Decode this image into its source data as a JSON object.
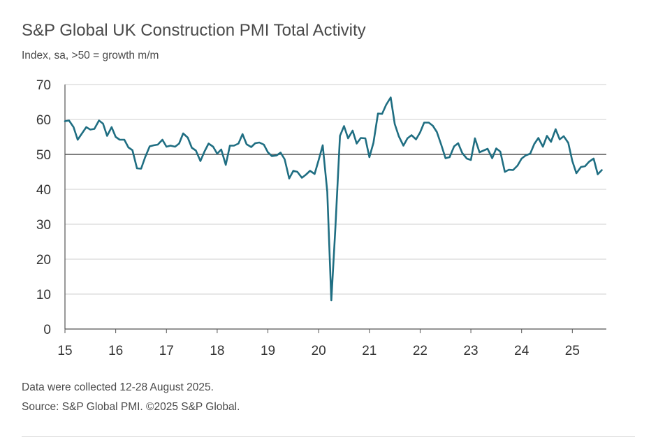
{
  "chart_data": {
    "type": "line",
    "title": "S&P Global UK Construction PMI Total Activity",
    "subtitle": "Index, sa, >50 = growth m/m",
    "xlabel": "",
    "ylabel": "",
    "ylim": [
      0,
      70
    ],
    "yticks": [
      0,
      10,
      20,
      30,
      40,
      50,
      60,
      70
    ],
    "xlim": [
      2015,
      2025.67
    ],
    "xtick_labels": [
      "15",
      "16",
      "17",
      "18",
      "19",
      "20",
      "21",
      "22",
      "23",
      "24",
      "25"
    ],
    "xtick_values": [
      2015,
      2016,
      2017,
      2018,
      2019,
      2020,
      2021,
      2022,
      2023,
      2024,
      2025
    ],
    "grid": true,
    "reference_line": 50,
    "series": [
      {
        "name": "UK Construction PMI Total Activity",
        "color": "#1f6e82",
        "x": [
          2015.0,
          2015.08,
          2015.17,
          2015.25,
          2015.33,
          2015.42,
          2015.5,
          2015.58,
          2015.67,
          2015.75,
          2015.83,
          2015.92,
          2016.0,
          2016.08,
          2016.17,
          2016.25,
          2016.33,
          2016.42,
          2016.5,
          2016.58,
          2016.67,
          2016.75,
          2016.83,
          2016.92,
          2017.0,
          2017.08,
          2017.17,
          2017.25,
          2017.33,
          2017.42,
          2017.5,
          2017.58,
          2017.67,
          2017.75,
          2017.83,
          2017.92,
          2018.0,
          2018.08,
          2018.17,
          2018.25,
          2018.33,
          2018.42,
          2018.5,
          2018.58,
          2018.67,
          2018.75,
          2018.83,
          2018.92,
          2019.0,
          2019.08,
          2019.17,
          2019.25,
          2019.33,
          2019.42,
          2019.5,
          2019.58,
          2019.67,
          2019.75,
          2019.83,
          2019.92,
          2020.0,
          2020.08,
          2020.17,
          2020.25,
          2020.33,
          2020.42,
          2020.5,
          2020.58,
          2020.67,
          2020.75,
          2020.83,
          2020.92,
          2021.0,
          2021.08,
          2021.17,
          2021.25,
          2021.33,
          2021.42,
          2021.5,
          2021.58,
          2021.67,
          2021.75,
          2021.83,
          2021.92,
          2022.0,
          2022.08,
          2022.17,
          2022.25,
          2022.33,
          2022.42,
          2022.5,
          2022.58,
          2022.67,
          2022.75,
          2022.83,
          2022.92,
          2023.0,
          2023.08,
          2023.17,
          2023.25,
          2023.33,
          2023.42,
          2023.5,
          2023.58,
          2023.67,
          2023.75,
          2023.83,
          2023.92,
          2024.0,
          2024.08,
          2024.17,
          2024.25,
          2024.33,
          2024.42,
          2024.5,
          2024.58,
          2024.67,
          2024.75,
          2024.83,
          2024.92,
          2025.0,
          2025.08,
          2025.17,
          2025.25,
          2025.33,
          2025.42,
          2025.5,
          2025.58
        ],
        "values": [
          59.5,
          59.7,
          57.8,
          54.2,
          55.9,
          57.8,
          57.1,
          57.3,
          59.7,
          58.8,
          55.3,
          57.8,
          55.0,
          54.2,
          54.2,
          52.0,
          51.2,
          46.0,
          45.9,
          49.2,
          52.3,
          52.6,
          52.8,
          54.2,
          52.2,
          52.5,
          52.2,
          53.1,
          56.0,
          54.8,
          51.9,
          51.1,
          48.1,
          50.8,
          53.1,
          52.2,
          50.2,
          51.4,
          47.0,
          52.5,
          52.5,
          53.1,
          55.8,
          52.9,
          52.1,
          53.2,
          53.4,
          52.8,
          50.6,
          49.5,
          49.7,
          50.5,
          48.6,
          43.1,
          45.3,
          45.0,
          43.3,
          44.2,
          45.3,
          44.4,
          48.4,
          52.6,
          39.3,
          8.2,
          28.9,
          55.3,
          58.1,
          54.6,
          56.8,
          53.1,
          54.7,
          54.6,
          49.2,
          53.3,
          61.7,
          61.6,
          64.2,
          66.3,
          58.7,
          55.2,
          52.5,
          54.6,
          55.5,
          54.3,
          56.3,
          59.1,
          59.1,
          58.2,
          56.4,
          52.6,
          48.9,
          49.2,
          52.3,
          53.2,
          50.4,
          48.8,
          48.4,
          54.6,
          50.6,
          51.1,
          51.6,
          48.9,
          51.7,
          50.8,
          45.0,
          45.6,
          45.5,
          46.8,
          48.8,
          49.7,
          50.2,
          53.0,
          54.7,
          52.2,
          55.3,
          53.6,
          57.2,
          54.3,
          55.2,
          53.3,
          48.1,
          44.6,
          46.4,
          46.6,
          47.9,
          48.8,
          44.3,
          45.5
        ]
      }
    ]
  },
  "notes": {
    "line1": "Data were collected 12-28 August 2025.",
    "line2": "Source: S&P Global PMI. ©2025 S&P Global."
  }
}
